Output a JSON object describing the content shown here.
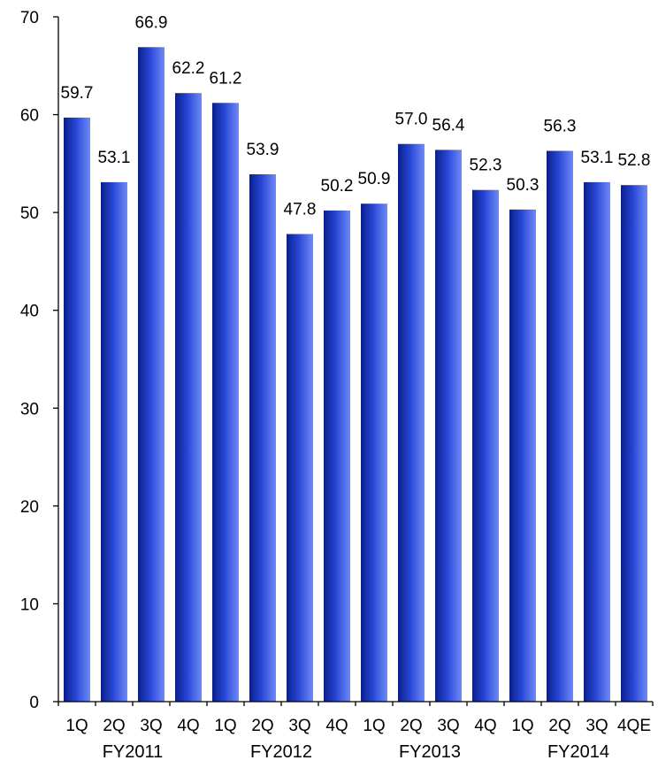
{
  "chart_data": {
    "type": "bar",
    "title": "",
    "xlabel": "",
    "ylabel": "",
    "ylim": [
      0,
      70
    ],
    "yticks": [
      0,
      10,
      20,
      30,
      40,
      50,
      60,
      70
    ],
    "grid": false,
    "legend": "none",
    "categories": [
      "1Q",
      "2Q",
      "3Q",
      "4Q",
      "1Q",
      "2Q",
      "3Q",
      "4Q",
      "1Q",
      "2Q",
      "3Q",
      "4Q",
      "1Q",
      "2Q",
      "3Q",
      "4QE"
    ],
    "value_labels": [
      "59.7",
      "53.1",
      "66.9",
      "62.2",
      "61.2",
      "53.9",
      "47.8",
      "50.2",
      "50.9",
      "57.0",
      "56.4",
      "52.3",
      "50.3",
      "56.3",
      "53.1",
      "52.8"
    ],
    "values": [
      59.7,
      53.1,
      66.9,
      62.2,
      61.2,
      53.9,
      47.8,
      50.2,
      50.9,
      57.0,
      56.4,
      52.3,
      50.3,
      56.3,
      53.1,
      52.8
    ],
    "groups": [
      {
        "label": "FY2011",
        "start": 0,
        "count": 4
      },
      {
        "label": "FY2012",
        "start": 4,
        "count": 4
      },
      {
        "label": "FY2013",
        "start": 8,
        "count": 4
      },
      {
        "label": "FY2014",
        "start": 12,
        "count": 4
      }
    ],
    "colors": {
      "bar_dark": "#0a1f8c",
      "bar_mid": "#2746d6",
      "bar_light": "#6f8af5",
      "axis": "#000000",
      "text": "#000000"
    }
  }
}
